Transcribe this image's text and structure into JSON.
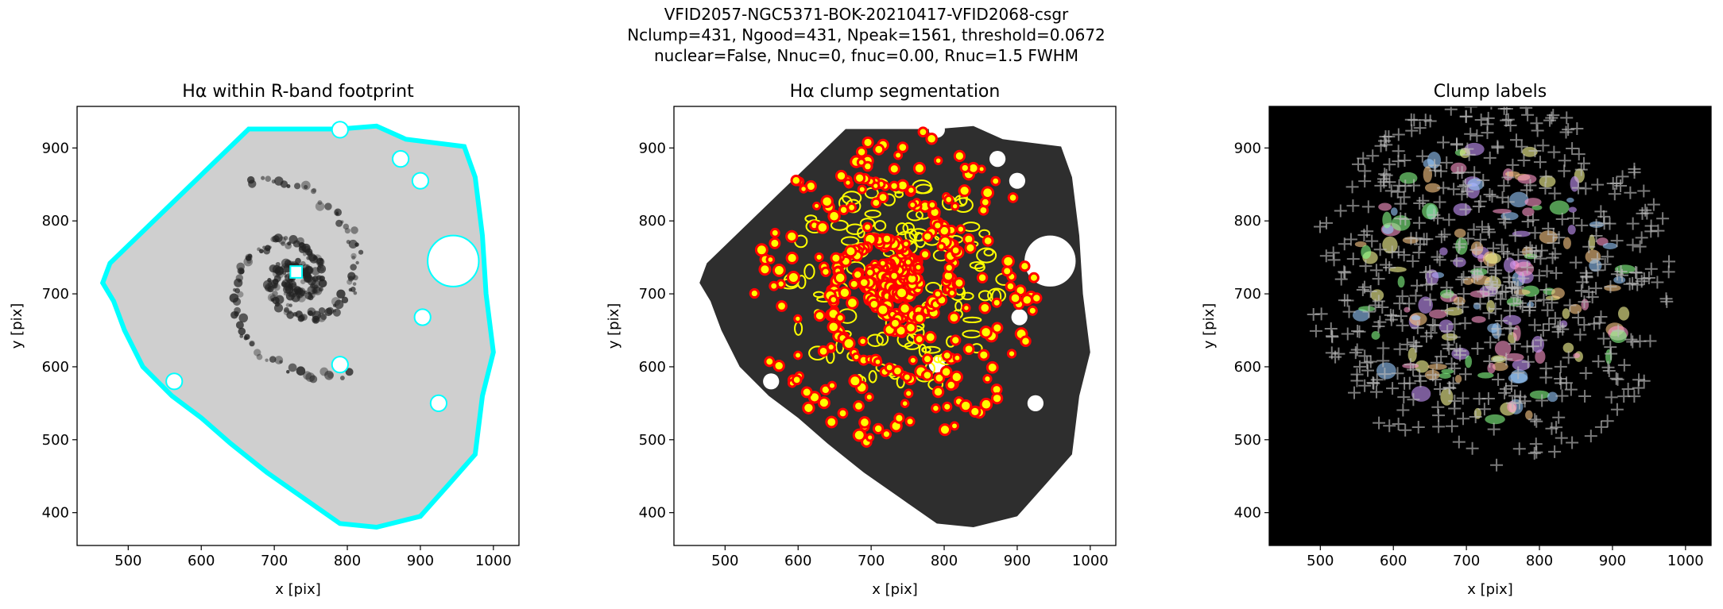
{
  "suptitle": [
    "VFID2057-NGC5371-BOK-20210417-VFID2068-csgr",
    "Nclump=431, Ngood=431, Npeak=1561, threshold=0.0672",
    "nuclear=False, Nnuc=0, fnuc=0.00, Rnuc=1.5 FWHM"
  ],
  "chart_data": [
    {
      "type": "image",
      "title": "Hα within R-band footprint",
      "xlabel": "x [pix]",
      "ylabel": "y [pix]",
      "xlim": [
        430,
        1035
      ],
      "ylim": [
        355,
        957
      ],
      "xticks": [
        500,
        600,
        700,
        800,
        900,
        1000
      ],
      "yticks": [
        400,
        500,
        600,
        700,
        800,
        900
      ]
    },
    {
      "type": "image",
      "title": "Hα clump segmentation",
      "xlabel": "x [pix]",
      "ylabel": "y [pix]",
      "xlim": [
        430,
        1035
      ],
      "ylim": [
        355,
        957
      ],
      "xticks": [
        500,
        600,
        700,
        800,
        900,
        1000
      ],
      "yticks": [
        400,
        500,
        600,
        700,
        800,
        900
      ]
    },
    {
      "type": "image",
      "title": "Clump labels",
      "xlabel": "x [pix]",
      "ylabel": "y [pix]",
      "xlim": [
        430,
        1035
      ],
      "ylim": [
        355,
        957
      ],
      "xticks": [
        500,
        600,
        700,
        800,
        900,
        1000
      ],
      "yticks": [
        400,
        500,
        600,
        700,
        800,
        900
      ]
    }
  ]
}
